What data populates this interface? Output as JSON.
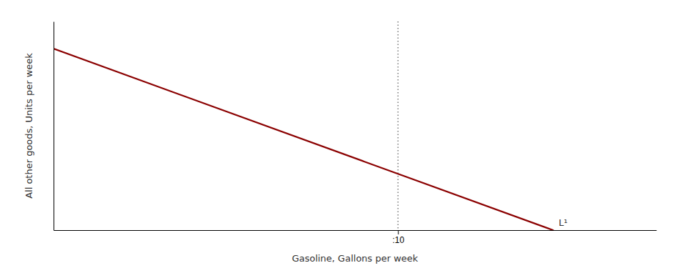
{
  "chart_data": {
    "type": "line",
    "xlabel": "Gasoline, Gallons per week",
    "ylabel": "All other goods, Units per week",
    "x": [
      0,
      14.5
    ],
    "series": [
      {
        "name": "L¹",
        "color": "#8B0000",
        "values": [
          10,
          0
        ]
      }
    ],
    "xlim": [
      0,
      17.5
    ],
    "ylim": [
      0,
      11.5
    ],
    "xticks": [
      {
        "value": 10,
        "label": ":10"
      }
    ],
    "yticks": [],
    "grid": true,
    "tick_labels": "x"
  }
}
